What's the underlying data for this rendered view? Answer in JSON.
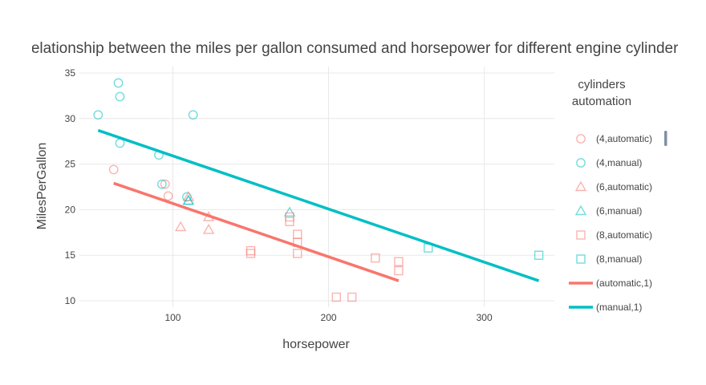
{
  "chart_data": {
    "type": "scatter",
    "title": "Relationship between the miles per gallon consumed   and horsepower for different engine cylinders",
    "xlabel": "horsepower",
    "ylabel": "MilesPerGallon",
    "xlim": [
      40,
      345
    ],
    "ylim": [
      9.3,
      35.7
    ],
    "x_ticks": [
      100,
      200,
      300
    ],
    "y_ticks": [
      10,
      15,
      20,
      25,
      30,
      35
    ],
    "grid": true,
    "legend": {
      "title_lines": [
        "cylinders",
        "automation"
      ],
      "placement": "right"
    },
    "colors": {
      "automatic": "#f8766d",
      "manual": "#00bfc4"
    },
    "series": [
      {
        "name": "(4,automatic)",
        "marker": "circle",
        "color": "#f8766d",
        "points": [
          [
            62,
            24.4
          ],
          [
            95,
            22.8
          ],
          [
            97,
            21.5
          ]
        ]
      },
      {
        "name": "(4,manual)",
        "marker": "circle",
        "color": "#00bfc4",
        "points": [
          [
            52,
            30.4
          ],
          [
            65,
            33.9
          ],
          [
            66,
            32.4
          ],
          [
            66,
            27.3
          ],
          [
            91,
            26.0
          ],
          [
            93,
            22.8
          ],
          [
            109,
            21.4
          ],
          [
            113,
            30.4
          ]
        ]
      },
      {
        "name": "(6,automatic)",
        "marker": "triangle",
        "color": "#f8766d",
        "points": [
          [
            105,
            18.1
          ],
          [
            110,
            21.4
          ],
          [
            123,
            19.2
          ],
          [
            123,
            17.8
          ]
        ]
      },
      {
        "name": "(6,manual)",
        "marker": "triangle",
        "color": "#00bfc4",
        "points": [
          [
            110,
            21.0
          ],
          [
            110,
            21.0
          ],
          [
            175,
            19.7
          ]
        ]
      },
      {
        "name": "(8,automatic)",
        "marker": "square",
        "color": "#f8766d",
        "points": [
          [
            150,
            15.5
          ],
          [
            150,
            15.2
          ],
          [
            175,
            18.7
          ],
          [
            175,
            19.2
          ],
          [
            180,
            16.4
          ],
          [
            180,
            17.3
          ],
          [
            180,
            15.2
          ],
          [
            205,
            10.4
          ],
          [
            215,
            10.4
          ],
          [
            230,
            14.7
          ],
          [
            245,
            14.3
          ],
          [
            245,
            13.3
          ]
        ]
      },
      {
        "name": "(8,manual)",
        "marker": "square",
        "color": "#00bfc4",
        "points": [
          [
            264,
            15.8
          ],
          [
            335,
            15.0
          ]
        ]
      },
      {
        "name": "(automatic,1)",
        "marker": "line",
        "color": "#f8766d",
        "points": [
          [
            62,
            22.9
          ],
          [
            245,
            12.2
          ]
        ]
      },
      {
        "name": "(manual,1)",
        "marker": "line",
        "color": "#00bfc4",
        "points": [
          [
            52,
            28.7
          ],
          [
            335,
            12.2
          ]
        ]
      }
    ]
  }
}
